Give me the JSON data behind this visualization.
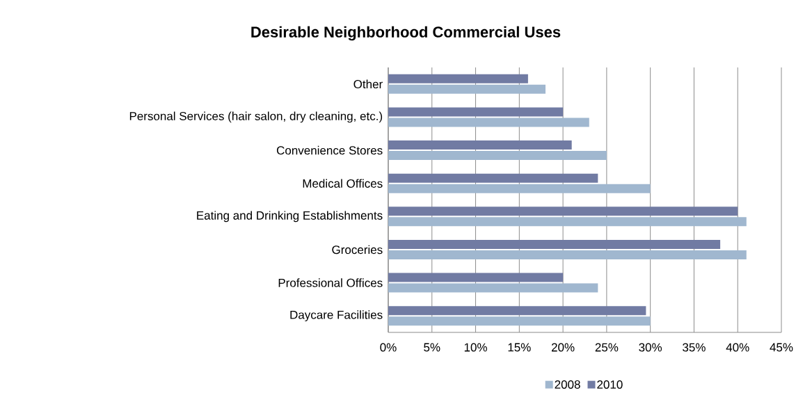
{
  "chart_data": {
    "type": "bar",
    "orientation": "horizontal",
    "title": "Desirable Neighborhood Commercial Uses",
    "categories": [
      "Other",
      "Personal Services (hair salon, dry cleaning, etc.)",
      "Convenience Stores",
      "Medical Offices",
      "Eating and Drinking Establishments",
      "Groceries",
      "Professional Offices",
      "Daycare Facilities"
    ],
    "series": [
      {
        "name": "2008",
        "color": "#a0b7cf",
        "values": [
          18,
          23,
          25,
          30,
          41,
          41,
          24,
          30
        ]
      },
      {
        "name": "2010",
        "color": "#717ba3",
        "values": [
          16,
          20,
          21,
          24,
          40,
          38,
          20,
          29.5
        ]
      }
    ],
    "xlim": [
      0,
      45
    ],
    "xticks": [
      {
        "value": 0,
        "label": "0%"
      },
      {
        "value": 5,
        "label": "5%"
      },
      {
        "value": 10,
        "label": "10%"
      },
      {
        "value": 15,
        "label": "15%"
      },
      {
        "value": 20,
        "label": "20%"
      },
      {
        "value": 25,
        "label": "25%"
      },
      {
        "value": 30,
        "label": "30%"
      },
      {
        "value": 35,
        "label": "35%"
      },
      {
        "value": 40,
        "label": "40%"
      },
      {
        "value": 45,
        "label": "45%"
      }
    ],
    "grid": "x",
    "legend": "bottom"
  }
}
